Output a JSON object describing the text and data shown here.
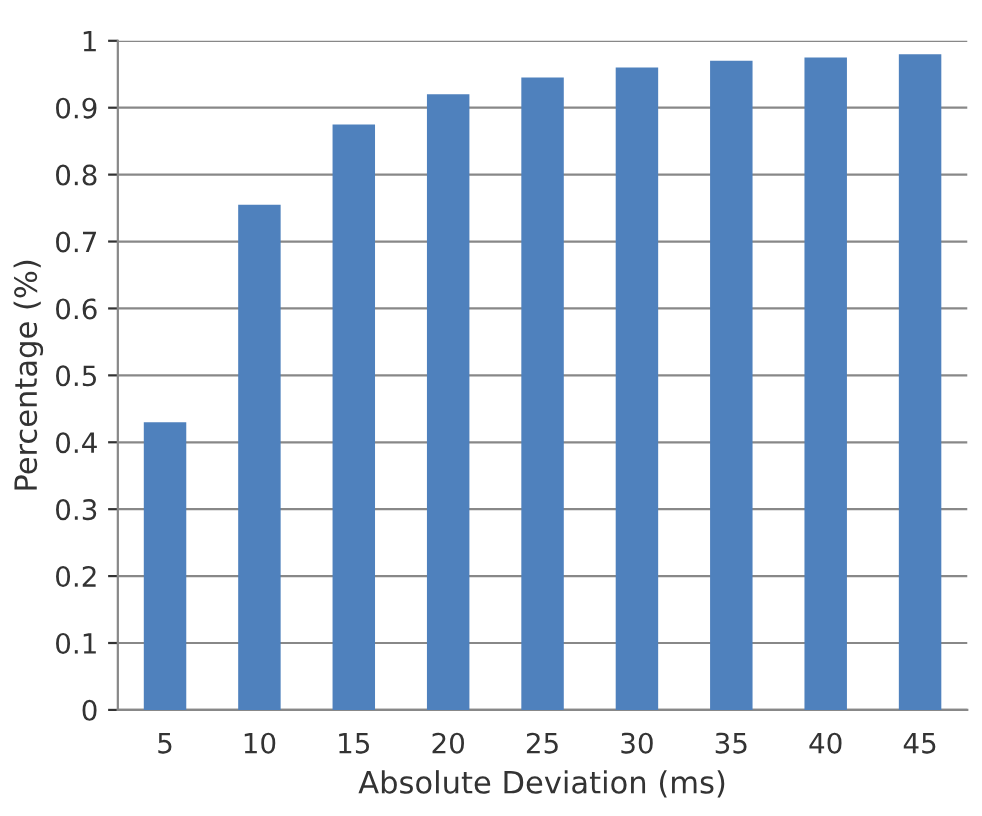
{
  "chart_data": {
    "type": "bar",
    "xlabel": "Absolute Deviation (ms)",
    "ylabel": "Percentage (%)",
    "categories": [
      "5",
      "10",
      "15",
      "20",
      "25",
      "30",
      "35",
      "40",
      "45"
    ],
    "values": [
      0.43,
      0.755,
      0.875,
      0.92,
      0.945,
      0.96,
      0.97,
      0.975,
      0.98
    ],
    "color": "#4f81bd",
    "ylim": [
      0,
      1
    ],
    "yticks": [
      0,
      0.1,
      0.2,
      0.3,
      0.4,
      0.5,
      0.6,
      0.7,
      0.8,
      0.9,
      1
    ],
    "grid": "y"
  }
}
